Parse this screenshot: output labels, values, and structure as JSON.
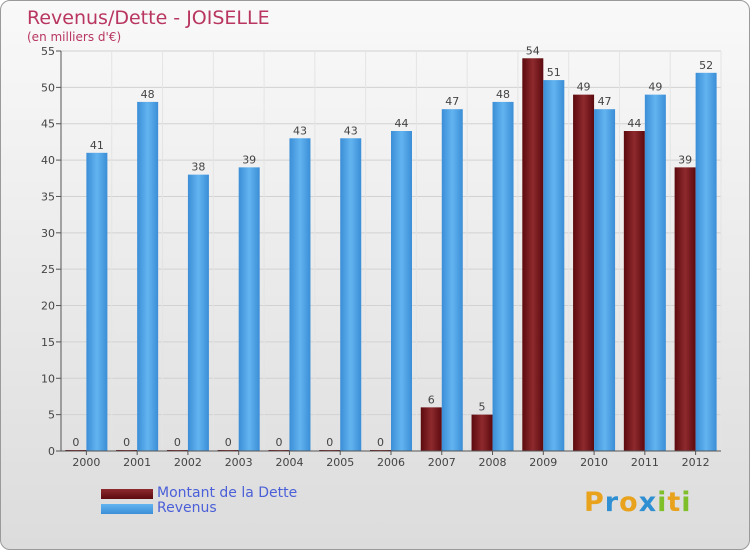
{
  "title": "Revenus/Dette - JOISELLE",
  "subtitle": "(en milliers d'€)",
  "logo": {
    "letters": [
      {
        "ch": "P",
        "color": "#e8a21c"
      },
      {
        "ch": "r",
        "color": "#2f8fd3"
      },
      {
        "ch": "o",
        "color": "#e8a21c"
      },
      {
        "ch": "x",
        "color": "#2f8fd3"
      },
      {
        "ch": "i",
        "color": "#7fbf2a"
      },
      {
        "ch": "t",
        "color": "#e8a21c"
      },
      {
        "ch": "i",
        "color": "#7fbf2a"
      }
    ]
  },
  "chart_data": {
    "type": "bar",
    "categories": [
      "2000",
      "2001",
      "2002",
      "2003",
      "2004",
      "2005",
      "2006",
      "2007",
      "2008",
      "2009",
      "2010",
      "2011",
      "2012"
    ],
    "series": [
      {
        "name": "Montant de la Dette",
        "color": "#7a1015",
        "values": [
          0,
          0,
          0,
          0,
          0,
          0,
          0,
          6,
          5,
          54,
          49,
          44,
          39
        ]
      },
      {
        "name": "Revenus",
        "color": "#4aa3e6",
        "values": [
          41,
          48,
          38,
          39,
          43,
          43,
          44,
          47,
          48,
          51,
          47,
          49,
          52
        ]
      }
    ],
    "ylim": [
      0,
      55
    ],
    "yticks": [
      0,
      5,
      10,
      15,
      20,
      25,
      30,
      35,
      40,
      45,
      50,
      55
    ],
    "grid": true,
    "legend_position": "bottom-left"
  }
}
